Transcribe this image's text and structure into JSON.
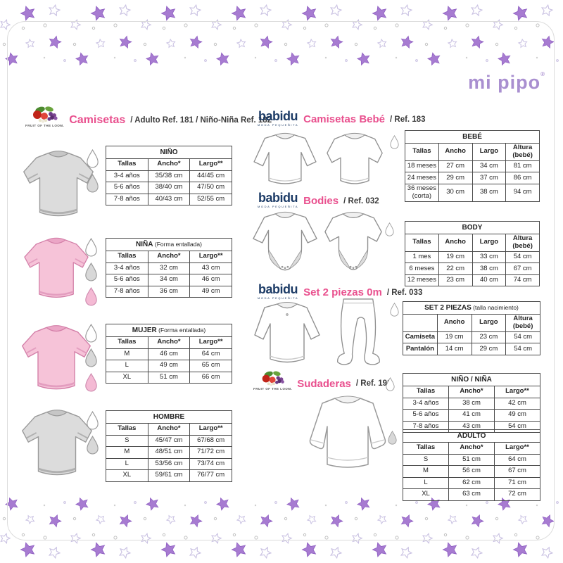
{
  "brand": {
    "mipipo": "mi pipo",
    "registered": "®"
  },
  "colors": {
    "accent_pink": "#e9508e",
    "babidu_navy": "#1c3b66",
    "mipipo_purple": "#a98fd0",
    "star_filled": "#a77bd1",
    "star_outline": "#c9c1e2",
    "tshirt_grey": "#dcdcdc",
    "tshirt_pink": "#f6c3d8",
    "table_border": "#4a4a4a"
  },
  "sections": {
    "camisetas": {
      "logo_text": "FRUIT OF THE LOOM.",
      "title": "Camisetas",
      "suffix": "/ Adulto Ref. 181 / Niño-Niña Ref. 182"
    },
    "camisetas_bebe": {
      "logo_text": "babidu",
      "logo_tagline": "MODA PEQUEÑITA",
      "title": "Camisetas Bebé",
      "suffix": "/ Ref. 183"
    },
    "bodies": {
      "logo_text": "babidu",
      "logo_tagline": "MODA PEQUEÑITA",
      "title": "Bodies",
      "suffix": "/ Ref. 032"
    },
    "set2piezas": {
      "logo_text": "babidu",
      "logo_tagline": "MODA PEQUEÑITA",
      "title": "Set 2 piezas 0m",
      "suffix": "/ Ref. 033"
    },
    "sudaderas": {
      "logo_text": "FRUIT OF THE LOOM.",
      "title": "Sudaderas",
      "suffix": "/ Ref. 192"
    }
  },
  "tables": {
    "nino": {
      "title": "NIÑO",
      "note": "",
      "headers": [
        "Tallas",
        "Ancho*",
        "Largo**"
      ],
      "rows": [
        [
          "3-4 años",
          "35/38 cm",
          "44/45 cm"
        ],
        [
          "5-6 años",
          "38/40 cm",
          "47/50 cm"
        ],
        [
          "7-8 años",
          "40/43 cm",
          "52/55 cm"
        ]
      ]
    },
    "nina": {
      "title": "NIÑA",
      "note": "(Forma entallada)",
      "headers": [
        "Tallas",
        "Ancho*",
        "Largo**"
      ],
      "rows": [
        [
          "3-4 años",
          "32 cm",
          "43 cm"
        ],
        [
          "5-6 años",
          "34 cm",
          "46 cm"
        ],
        [
          "7-8 años",
          "36 cm",
          "49 cm"
        ]
      ]
    },
    "mujer": {
      "title": "MUJER",
      "note": "(Forma entallada)",
      "headers": [
        "Tallas",
        "Ancho*",
        "Largo**"
      ],
      "rows": [
        [
          "M",
          "46 cm",
          "64 cm"
        ],
        [
          "L",
          "49 cm",
          "65 cm"
        ],
        [
          "XL",
          "51 cm",
          "66 cm"
        ]
      ]
    },
    "hombre": {
      "title": "HOMBRE",
      "note": "",
      "headers": [
        "Tallas",
        "Ancho*",
        "Largo**"
      ],
      "rows": [
        [
          "S",
          "45/47 cm",
          "67/68 cm"
        ],
        [
          "M",
          "48/51 cm",
          "71/72 cm"
        ],
        [
          "L",
          "53/56 cm",
          "73/74 cm"
        ],
        [
          "XL",
          "59/61 cm",
          "76/77 cm"
        ]
      ]
    },
    "bebe": {
      "title": "BEBÉ",
      "note": "",
      "headers": [
        "Tallas",
        "Ancho",
        "Largo",
        "Altura (bebé)"
      ],
      "rows": [
        [
          "18 meses",
          "27 cm",
          "34 cm",
          "81 cm"
        ],
        [
          "24 meses",
          "29 cm",
          "37 cm",
          "86 cm"
        ],
        [
          "36 meses\n(corta)",
          "30 cm",
          "38 cm",
          "94 cm"
        ]
      ]
    },
    "body": {
      "title": "BODY",
      "note": "",
      "headers": [
        "Tallas",
        "Ancho",
        "Largo",
        "Altura (bebé)"
      ],
      "rows": [
        [
          "1 mes",
          "19 cm",
          "33 cm",
          "54 cm"
        ],
        [
          "6 meses",
          "22 cm",
          "38 cm",
          "67 cm"
        ],
        [
          "12 meses",
          "23 cm",
          "40 cm",
          "74 cm"
        ]
      ]
    },
    "set2": {
      "title": "SET 2 PIEZAS",
      "note": "(talla nacimiento)",
      "headers": [
        "",
        "Ancho",
        "Largo",
        "Altura (bebé)"
      ],
      "rows": [
        [
          "Camiseta",
          "19 cm",
          "23 cm",
          "54 cm"
        ],
        [
          "Pantalón",
          "14 cm",
          "29 cm",
          "54 cm"
        ]
      ]
    },
    "nino_nina": {
      "title": "NIÑO / NIÑA",
      "note": "",
      "headers": [
        "Tallas",
        "Ancho*",
        "Largo**"
      ],
      "rows": [
        [
          "3-4 años",
          "38 cm",
          "42 cm"
        ],
        [
          "5-6 años",
          "41 cm",
          "49 cm"
        ],
        [
          "7-8 años",
          "43 cm",
          "54 cm"
        ]
      ]
    },
    "adulto": {
      "title": "ADULTO",
      "note": "",
      "headers": [
        "Tallas",
        "Ancho*",
        "Largo**"
      ],
      "rows": [
        [
          "S",
          "51 cm",
          "64 cm"
        ],
        [
          "M",
          "56 cm",
          "67 cm"
        ],
        [
          "L",
          "62 cm",
          "71 cm"
        ],
        [
          "XL",
          "63 cm",
          "72 cm"
        ]
      ]
    }
  },
  "swatches": {
    "nino": [
      "white",
      "grey"
    ],
    "nina": [
      "white",
      "grey",
      "pink"
    ],
    "mujer": [
      "white",
      "grey",
      "pink"
    ],
    "hombre": [
      "white",
      "grey"
    ],
    "bebe": [
      "white"
    ],
    "body": [
      "white"
    ],
    "set2": [
      "white"
    ],
    "nino_nina": [
      "white"
    ],
    "adulto": [
      "grey"
    ]
  }
}
